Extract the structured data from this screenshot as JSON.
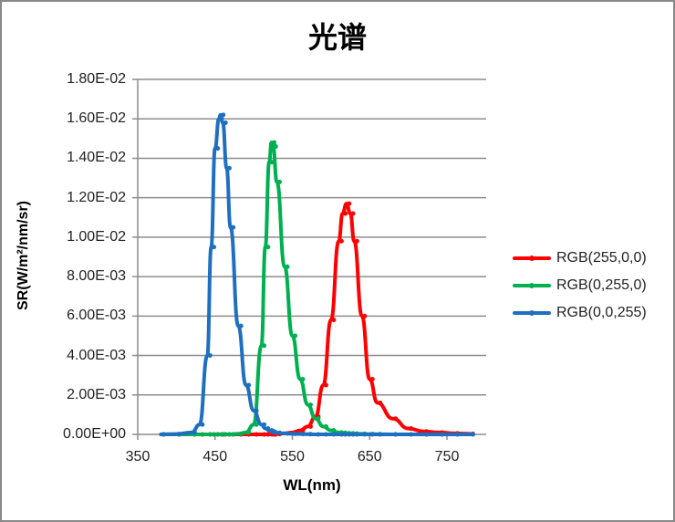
{
  "chart_data": {
    "type": "line",
    "title": "光谱",
    "xlabel": "WL(nm)",
    "ylabel": "SR(W/m²/nm/sr)",
    "xlim": [
      350,
      800
    ],
    "ylim": [
      0,
      0.018
    ],
    "x_ticks": [
      "350",
      "450",
      "550",
      "650",
      "750"
    ],
    "y_ticks": [
      "0.00E+00",
      "2.00E-03",
      "4.00E-03",
      "6.00E-03",
      "8.00E-03",
      "1.00E-02",
      "1.20E-02",
      "1.40E-02",
      "1.60E-02",
      "1.80E-02"
    ],
    "grid": "horizontal",
    "legend_position": "right",
    "x": [
      380,
      400,
      420,
      430,
      440,
      445,
      450,
      455,
      457,
      460,
      465,
      470,
      480,
      490,
      500,
      510,
      515,
      520,
      523,
      525,
      530,
      540,
      550,
      560,
      570,
      580,
      590,
      600,
      610,
      615,
      620,
      625,
      630,
      640,
      650,
      660,
      680,
      700,
      720,
      740,
      760,
      780
    ],
    "series": [
      {
        "name": "RGB(255,0,0)",
        "color": "#ff0000",
        "values": [
          0,
          0,
          0,
          0,
          0,
          0,
          0,
          0,
          0,
          0,
          0,
          0,
          0,
          0,
          0,
          0,
          0,
          0,
          0,
          0,
          2e-05,
          5e-05,
          0.0001,
          0.0002,
          0.0004,
          0.0009,
          0.0025,
          0.0058,
          0.0098,
          0.0112,
          0.0117,
          0.0112,
          0.0098,
          0.006,
          0.0028,
          0.0016,
          0.0008,
          0.0003,
          0.00015,
          0.0001,
          5e-05,
          3e-05
        ]
      },
      {
        "name": "RGB(0,255,0)",
        "color": "#00b050",
        "values": [
          0,
          0,
          0,
          0,
          0,
          0,
          0,
          0,
          0,
          0,
          0,
          0,
          3e-05,
          0.0001,
          0.0005,
          0.0045,
          0.0095,
          0.0138,
          0.0148,
          0.0146,
          0.0128,
          0.0085,
          0.005,
          0.0028,
          0.0015,
          0.0008,
          0.0004,
          0.0002,
          0.0001,
          8e-05,
          6e-05,
          5e-05,
          4e-05,
          3e-05,
          2e-05,
          1e-05,
          0,
          0,
          0,
          0,
          0,
          0
        ]
      },
      {
        "name": "RGB(0,0,255)",
        "color": "#1f6fc0",
        "values": [
          0,
          2e-05,
          0.0001,
          0.0005,
          0.004,
          0.0095,
          0.0145,
          0.016,
          0.0162,
          0.0158,
          0.0135,
          0.0105,
          0.0055,
          0.0025,
          0.0012,
          0.0005,
          0.0003,
          0.0002,
          0.00015,
          0.0001,
          8e-05,
          5e-05,
          3e-05,
          2e-05,
          1e-05,
          0,
          0,
          0,
          0,
          0,
          0,
          0,
          0,
          0,
          0,
          0,
          0,
          0,
          0,
          0,
          0,
          0
        ]
      }
    ]
  },
  "legend": {
    "items": [
      {
        "label": "RGB(255,0,0)",
        "color": "#ff0000"
      },
      {
        "label": "RGB(0,255,0)",
        "color": "#00b050"
      },
      {
        "label": "RGB(0,0,255)",
        "color": "#1f6fc0"
      }
    ]
  }
}
